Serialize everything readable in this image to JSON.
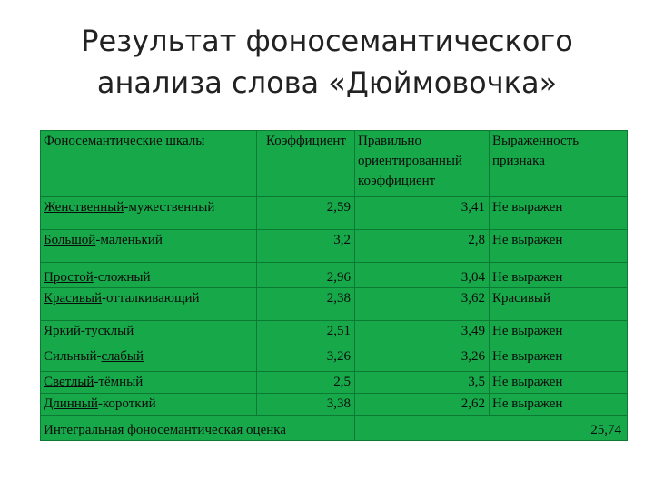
{
  "title": {
    "line1": "Результат фоносемантического",
    "line2": "анализа слова «Дюймовочка»"
  },
  "table": {
    "headers": {
      "scales": "Фоносемантические шкалы",
      "coef": "Коэффициент",
      "correct": "Правильно ориентированный коэффициент",
      "expr": "Выраженность признака"
    },
    "rows": [
      {
        "a": "Женственный",
        "sep": "-",
        "b": "мужественный",
        "ul": "a",
        "coef": "2,59",
        "correct": "3,41",
        "expr": "Не выражен"
      },
      {
        "a": "Большой",
        "sep": "-",
        "b": "маленький",
        "ul": "a",
        "coef": "3,2",
        "correct": "2,8",
        "expr": "Не выражен"
      },
      {
        "a": "Простой",
        "sep": "-",
        "b": "сложный",
        "ul": "a",
        "coef": "2,96",
        "correct": "3,04",
        "expr": "Не выражен"
      },
      {
        "a": "Красивый",
        "sep": "-",
        "b": "отталкивающий",
        "ul": "a",
        "coef": "2,38",
        "correct": "3,62",
        "expr": "Красивый"
      },
      {
        "a": "Яркий",
        "sep": "-",
        "b": "тусклый",
        "ul": "a",
        "coef": "2,51",
        "correct": "3,49",
        "expr": "Не выражен"
      },
      {
        "a": "Сильный",
        "sep": "-",
        "b": "слабый",
        "ul": "b",
        "coef": "3,26",
        "correct": "3,26",
        "expr": "Не выражен"
      },
      {
        "a": "Светлый",
        "sep": "-",
        "b": "тёмный",
        "ul": "a",
        "coef": "2,5",
        "correct": "3,5",
        "expr": "Не выражен"
      },
      {
        "a": "Длинный",
        "sep": "-",
        "b": "короткий",
        "ul": "a",
        "coef": "3,38",
        "correct": "2,62",
        "expr": "Не выражен"
      }
    ],
    "total_label": "Интегральная фоносемантическая оценка",
    "total_value": "25,74"
  }
}
